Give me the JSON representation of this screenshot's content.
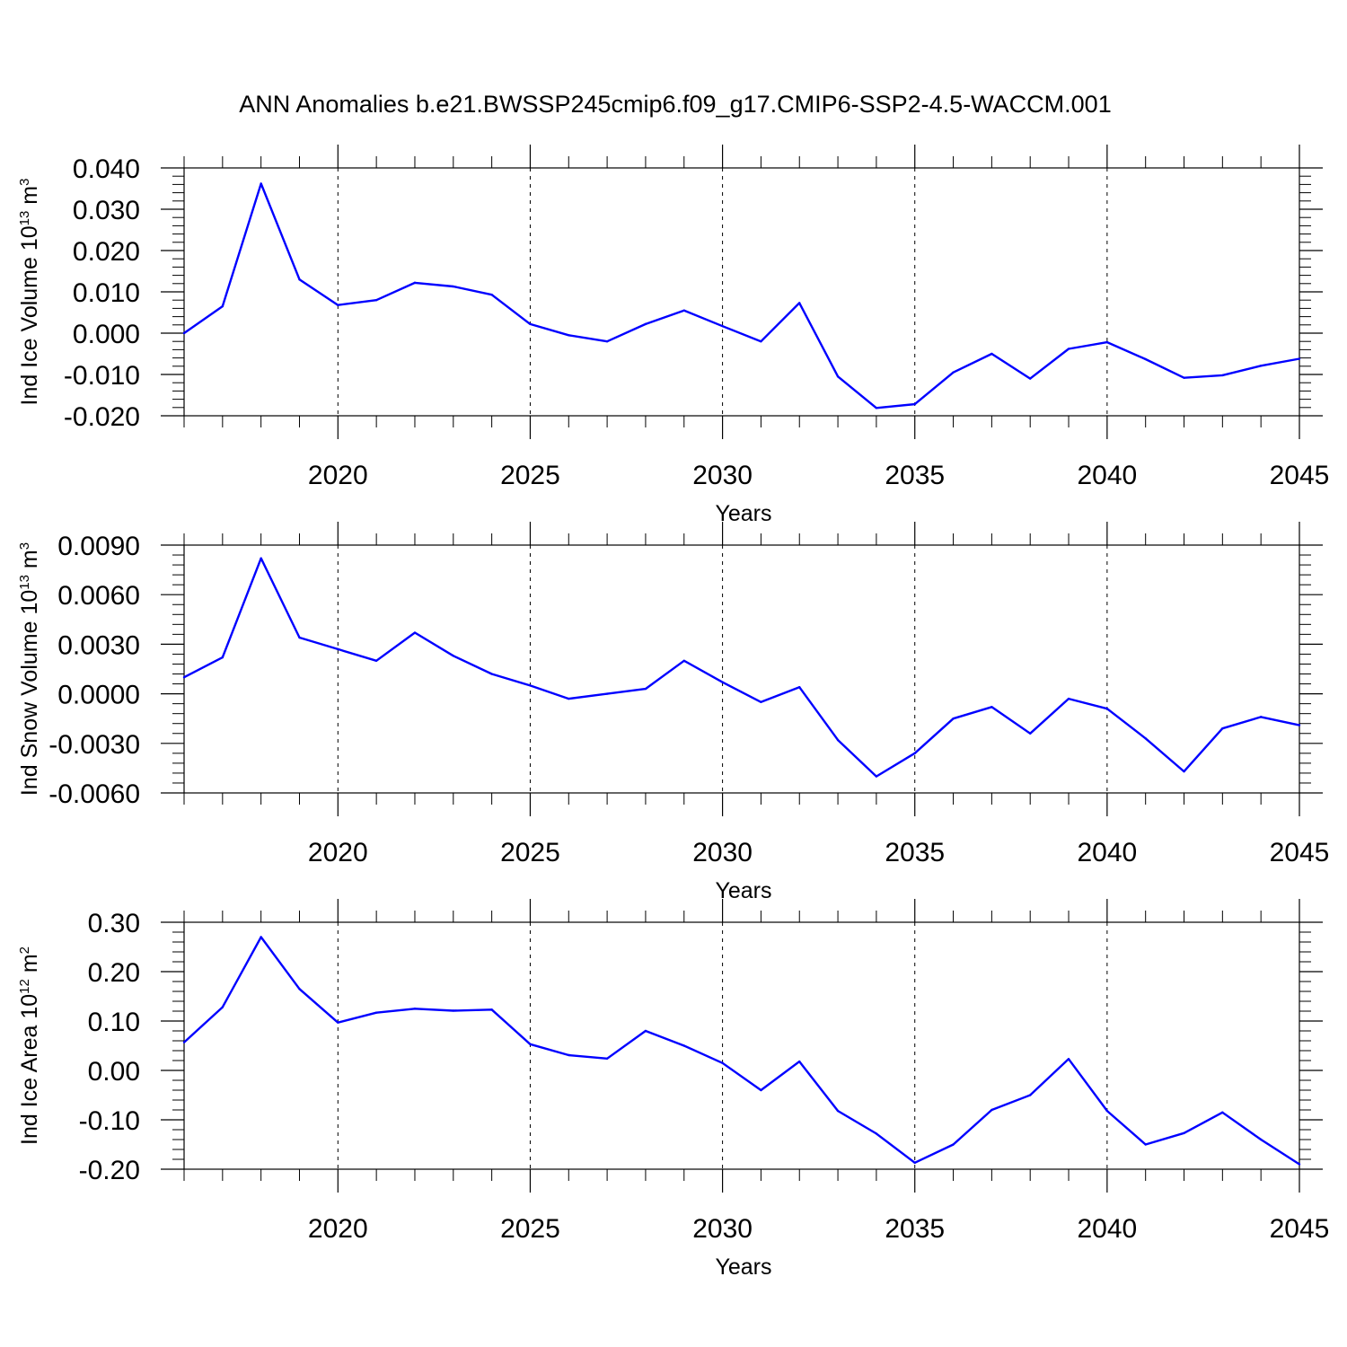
{
  "figure": {
    "title": "ANN Anomalies b.e21.BWSSP245cmip6.f09_g17.CMIP6-SSP2-4.5-WACCM.001",
    "line_color": "#0000ff"
  },
  "chart_data": [
    {
      "type": "line",
      "ylabel": {
        "base": "Ind Ice Volume 10",
        "exp": "13",
        "unit": " m",
        "unit_exp": "3"
      },
      "xlabel": "Years",
      "xlim": [
        2016,
        2045
      ],
      "ylim": [
        -0.02,
        0.04
      ],
      "yticks": [
        -0.02,
        -0.01,
        0.0,
        0.01,
        0.02,
        0.03,
        0.04
      ],
      "ytick_labels": [
        "-0.020",
        "-0.010",
        "0.000",
        "0.010",
        "0.020",
        "0.030",
        "0.040"
      ],
      "yminor_step": 0.002,
      "xticks": [
        2020,
        2025,
        2030,
        2035,
        2040,
        2045
      ],
      "xtick_labels": [
        "2020",
        "2025",
        "2030",
        "2035",
        "2040",
        "2045"
      ],
      "grid_x": [
        2020,
        2025,
        2030,
        2035,
        2040
      ],
      "x": [
        2016,
        2017,
        2018,
        2019,
        2020,
        2021,
        2022,
        2023,
        2024,
        2025,
        2026,
        2027,
        2028,
        2029,
        2030,
        2031,
        2032,
        2033,
        2034,
        2035,
        2036,
        2037,
        2038,
        2039,
        2040,
        2041,
        2042,
        2043,
        2044,
        2045
      ],
      "values": [
        0.0,
        0.0065,
        0.0362,
        0.013,
        0.0068,
        0.008,
        0.0122,
        0.0113,
        0.0093,
        0.0022,
        -0.0005,
        -0.002,
        0.0022,
        0.0055,
        0.0017,
        -0.002,
        0.0073,
        -0.0105,
        -0.0181,
        -0.0172,
        -0.0095,
        -0.005,
        -0.011,
        -0.0038,
        -0.0022,
        -0.0063,
        -0.0108,
        -0.0102,
        -0.0079,
        -0.0062
      ]
    },
    {
      "type": "line",
      "ylabel": {
        "base": "Ind Snow Volume 10",
        "exp": "13",
        "unit": " m",
        "unit_exp": "3"
      },
      "xlabel": "Years",
      "xlim": [
        2016,
        2045
      ],
      "ylim": [
        -0.006,
        0.009
      ],
      "yticks": [
        -0.006,
        -0.003,
        0.0,
        0.003,
        0.006,
        0.009
      ],
      "ytick_labels": [
        "-0.0060",
        "-0.0030",
        "0.0000",
        "0.0030",
        "0.0060",
        "0.0090"
      ],
      "yminor_step": 0.0006,
      "xticks": [
        2020,
        2025,
        2030,
        2035,
        2040,
        2045
      ],
      "xtick_labels": [
        "2020",
        "2025",
        "2030",
        "2035",
        "2040",
        "2045"
      ],
      "grid_x": [
        2020,
        2025,
        2030,
        2035,
        2040
      ],
      "x": [
        2016,
        2017,
        2018,
        2019,
        2020,
        2021,
        2022,
        2023,
        2024,
        2025,
        2026,
        2027,
        2028,
        2029,
        2030,
        2031,
        2032,
        2033,
        2034,
        2035,
        2036,
        2037,
        2038,
        2039,
        2040,
        2041,
        2042,
        2043,
        2044,
        2045
      ],
      "values": [
        0.001,
        0.0022,
        0.0082,
        0.0034,
        0.0027,
        0.002,
        0.0037,
        0.0023,
        0.0012,
        0.0005,
        -0.0003,
        0.0,
        0.0003,
        0.002,
        0.0007,
        -0.0005,
        0.0004,
        -0.0028,
        -0.005,
        -0.0036,
        -0.0015,
        -0.0008,
        -0.0024,
        -0.0003,
        -0.0009,
        -0.0027,
        -0.0047,
        -0.0021,
        -0.0014,
        -0.0019
      ]
    },
    {
      "type": "line",
      "ylabel": {
        "base": "Ind Ice Area 10",
        "exp": "12",
        "unit": " m",
        "unit_exp": "2"
      },
      "xlabel": "Years",
      "xlim": [
        2016,
        2045
      ],
      "ylim": [
        -0.2,
        0.3
      ],
      "yticks": [
        -0.2,
        -0.1,
        0.0,
        0.1,
        0.2,
        0.3
      ],
      "ytick_labels": [
        "-0.20",
        "-0.10",
        "0.00",
        "0.10",
        "0.20",
        "0.30"
      ],
      "yminor_step": 0.02,
      "xticks": [
        2020,
        2025,
        2030,
        2035,
        2040,
        2045
      ],
      "xtick_labels": [
        "2020",
        "2025",
        "2030",
        "2035",
        "2040",
        "2045"
      ],
      "grid_x": [
        2020,
        2025,
        2030,
        2035,
        2040
      ],
      "x": [
        2016,
        2017,
        2018,
        2019,
        2020,
        2021,
        2022,
        2023,
        2024,
        2025,
        2026,
        2027,
        2028,
        2029,
        2030,
        2031,
        2032,
        2033,
        2034,
        2035,
        2036,
        2037,
        2038,
        2039,
        2040,
        2041,
        2042,
        2043,
        2044,
        2045
      ],
      "values": [
        0.057,
        0.128,
        0.27,
        0.165,
        0.097,
        0.117,
        0.125,
        0.121,
        0.123,
        0.053,
        0.031,
        0.024,
        0.08,
        0.05,
        0.015,
        -0.04,
        0.018,
        -0.082,
        -0.128,
        -0.187,
        -0.15,
        -0.08,
        -0.05,
        0.023,
        -0.082,
        -0.15,
        -0.127,
        -0.085,
        -0.14,
        -0.19
      ]
    }
  ]
}
